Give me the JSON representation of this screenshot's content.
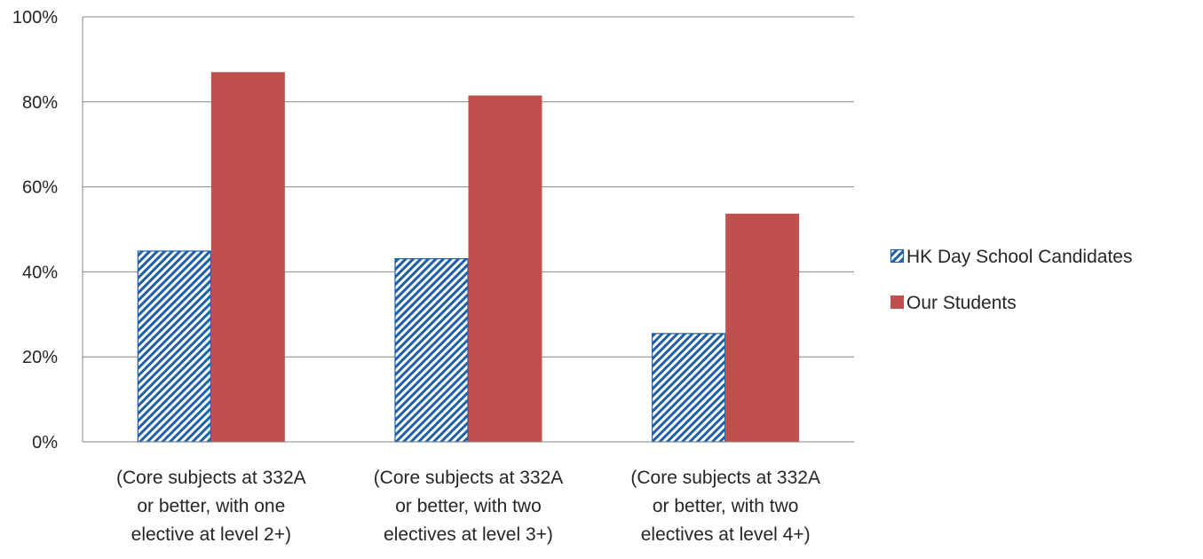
{
  "chart_data": {
    "type": "bar",
    "categories": [
      [
        "(Core subjects at 332A",
        "or better, with one",
        "elective at level 2+)"
      ],
      [
        "(Core subjects at 332A",
        "or better, with two",
        "electives at level 3+)"
      ],
      [
        "(Core subjects at 332A",
        "or better, with two",
        "electives at level 4+)"
      ]
    ],
    "series": [
      {
        "name": "HK Day School Candidates",
        "values": [
          45,
          43.2,
          25.6
        ],
        "color": "#1f5fa8",
        "fill": "diagonal-hatch"
      },
      {
        "name": "Our Students",
        "values": [
          87,
          81.5,
          53.7
        ],
        "color": "#c0504d",
        "fill": "solid"
      }
    ],
    "ylim": [
      0,
      100
    ],
    "yticks": [
      "0%",
      "20%",
      "40%",
      "60%",
      "80%",
      "100%"
    ],
    "grid": true,
    "legend_position": "right"
  }
}
